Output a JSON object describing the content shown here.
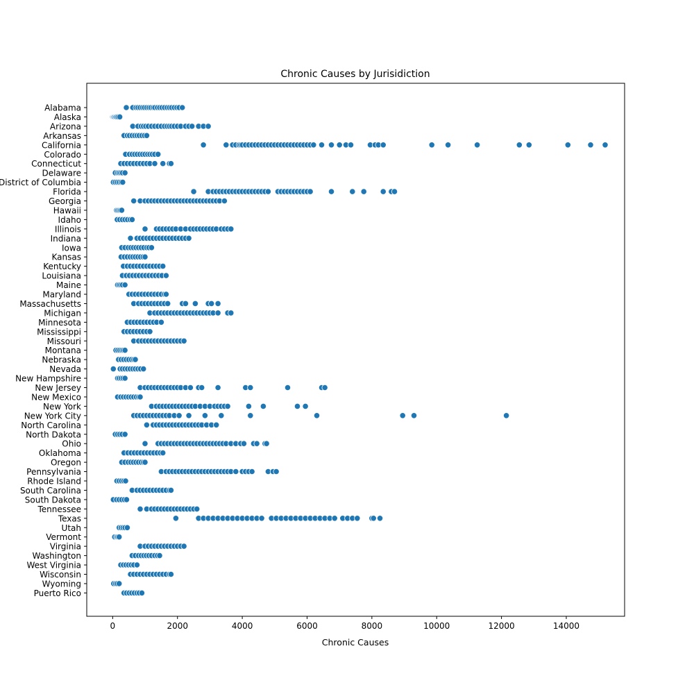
{
  "chart_data": {
    "type": "scatter",
    "title": "Chronic Causes by Jurisidiction",
    "xlabel": "Chronic Causes",
    "ylabel": "",
    "xlim": [
      -800,
      15800
    ],
    "xticks": [
      0,
      2000,
      4000,
      6000,
      8000,
      10000,
      12000,
      14000
    ],
    "grid": false,
    "marker_color": "#1f77b4",
    "marker_edge_color": "#ffffff",
    "categories": [
      {
        "name": "Alabama",
        "min": 420,
        "max": 2150,
        "n": 28,
        "values": [
          420,
          620,
          720,
          780,
          850,
          920,
          980,
          1050,
          1120,
          1180,
          1250,
          1300,
          1380,
          1450,
          1520,
          1600,
          1680,
          1750,
          1820,
          1900,
          1980,
          2050,
          2150
        ]
      },
      {
        "name": "Alaska",
        "min": 0,
        "max": 220,
        "n": 8,
        "values": [
          0,
          20,
          40,
          70,
          100,
          130,
          170,
          220
        ]
      },
      {
        "name": "Arizona",
        "min": 620,
        "max": 2950,
        "n": 30,
        "values": [
          620,
          780,
          880,
          950,
          1020,
          1100,
          1200,
          1300,
          1400,
          1500,
          1600,
          1680,
          1750,
          1820,
          1900,
          2000,
          2100,
          2250,
          2350,
          2450,
          2650,
          2800,
          2950
        ]
      },
      {
        "name": "Arkansas",
        "min": 350,
        "max": 1050,
        "n": 18,
        "values": [
          350,
          450,
          520,
          600,
          680,
          750,
          820,
          900,
          980,
          1050
        ]
      },
      {
        "name": "California",
        "min": 2800,
        "max": 15200,
        "n": 50,
        "values": [
          2800,
          3500,
          3700,
          3800,
          3900,
          3950,
          4000,
          4100,
          4200,
          4300,
          4400,
          4500,
          4600,
          4700,
          4800,
          4900,
          5000,
          5100,
          5200,
          5300,
          5400,
          5500,
          5600,
          5700,
          5800,
          5900,
          6000,
          6100,
          6200,
          6450,
          6750,
          7000,
          7200,
          7350,
          7950,
          8100,
          8200,
          8350,
          9850,
          10350,
          11250,
          12550,
          12850,
          14050,
          14750,
          15200
        ]
      },
      {
        "name": "Colorado",
        "min": 400,
        "max": 1400,
        "n": 20,
        "values": [
          400,
          520,
          600,
          680,
          760,
          840,
          920,
          1000,
          1080,
          1150,
          1220,
          1300,
          1400
        ]
      },
      {
        "name": "Connecticut",
        "min": 250,
        "max": 1800,
        "n": 22,
        "values": [
          250,
          350,
          450,
          550,
          650,
          750,
          850,
          950,
          1050,
          1150,
          1300,
          1550,
          1750,
          1800
        ]
      },
      {
        "name": "Delaware",
        "min": 80,
        "max": 380,
        "n": 8,
        "values": [
          80,
          150,
          200,
          250,
          300,
          380
        ]
      },
      {
        "name": "District of Columbia",
        "min": 20,
        "max": 310,
        "n": 8,
        "values": [
          20,
          80,
          140,
          200,
          260,
          310
        ]
      },
      {
        "name": "Florida",
        "min": 2500,
        "max": 8700,
        "n": 45,
        "values": [
          2500,
          2950,
          3100,
          3200,
          3300,
          3400,
          3500,
          3600,
          3700,
          3800,
          3900,
          4000,
          4100,
          4200,
          4300,
          4400,
          4500,
          4600,
          4700,
          4800,
          5100,
          5200,
          5300,
          5400,
          5500,
          5600,
          5700,
          5800,
          5900,
          6000,
          6100,
          6750,
          7400,
          7750,
          8350,
          8600,
          8700
        ]
      },
      {
        "name": "Georgia",
        "min": 650,
        "max": 3450,
        "n": 35,
        "values": [
          650,
          850,
          1000,
          1100,
          1200,
          1300,
          1400,
          1500,
          1600,
          1700,
          1800,
          1900,
          2000,
          2100,
          2200,
          2300,
          2400,
          2500,
          2600,
          2700,
          2800,
          2900,
          3000,
          3100,
          3200,
          3300,
          3450
        ]
      },
      {
        "name": "Hawaii",
        "min": 120,
        "max": 280,
        "n": 6,
        "values": [
          120,
          160,
          200,
          240,
          280
        ]
      },
      {
        "name": "Idaho",
        "min": 140,
        "max": 600,
        "n": 10,
        "values": [
          140,
          220,
          300,
          380,
          460,
          540,
          600
        ]
      },
      {
        "name": "Illinois",
        "min": 1000,
        "max": 3650,
        "n": 35,
        "values": [
          1000,
          1350,
          1450,
          1550,
          1650,
          1750,
          1850,
          1950,
          2100,
          2250,
          2400,
          2500,
          2600,
          2700,
          2800,
          2900,
          3000,
          3100,
          3200,
          3350,
          3450,
          3550,
          3650
        ]
      },
      {
        "name": "Indiana",
        "min": 550,
        "max": 2350,
        "n": 26,
        "values": [
          550,
          750,
          850,
          950,
          1050,
          1150,
          1250,
          1350,
          1450,
          1550,
          1650,
          1750,
          1850,
          1950,
          2050,
          2150,
          2250,
          2350
        ]
      },
      {
        "name": "Iowa",
        "min": 280,
        "max": 1200,
        "n": 18,
        "values": [
          280,
          380,
          480,
          560,
          640,
          720,
          800,
          880,
          960,
          1050,
          1120,
          1200
        ]
      },
      {
        "name": "Kansas",
        "min": 260,
        "max": 1000,
        "n": 16,
        "values": [
          260,
          360,
          450,
          540,
          620,
          700,
          780,
          860,
          940,
          1000
        ]
      },
      {
        "name": "Kentucky",
        "min": 330,
        "max": 1550,
        "n": 22,
        "values": [
          330,
          450,
          550,
          650,
          750,
          850,
          950,
          1050,
          1150,
          1250,
          1350,
          1450,
          1550
        ]
      },
      {
        "name": "Louisiana",
        "min": 300,
        "max": 1650,
        "n": 22,
        "values": [
          300,
          420,
          520,
          620,
          720,
          820,
          920,
          1020,
          1120,
          1220,
          1320,
          1420,
          1520,
          1650
        ]
      },
      {
        "name": "Maine",
        "min": 150,
        "max": 380,
        "n": 8,
        "values": [
          150,
          200,
          250,
          300,
          380
        ]
      },
      {
        "name": "Maryland",
        "min": 500,
        "max": 1650,
        "n": 20,
        "values": [
          500,
          600,
          700,
          800,
          900,
          1000,
          1100,
          1200,
          1300,
          1400,
          1500,
          1600,
          1650
        ]
      },
      {
        "name": "Massachusetts",
        "min": 650,
        "max": 3250,
        "n": 24,
        "values": [
          650,
          800,
          900,
          1000,
          1100,
          1200,
          1300,
          1400,
          1500,
          1600,
          1700,
          2150,
          2250,
          2550,
          2950,
          3050,
          3250
        ]
      },
      {
        "name": "Michigan",
        "min": 1150,
        "max": 3650,
        "n": 34,
        "values": [
          1150,
          1300,
          1400,
          1500,
          1600,
          1700,
          1800,
          1900,
          2000,
          2100,
          2200,
          2300,
          2400,
          2500,
          2600,
          2700,
          2800,
          2900,
          3000,
          3100,
          3250,
          3550,
          3650
        ]
      },
      {
        "name": "Minnesota",
        "min": 450,
        "max": 1500,
        "n": 18,
        "values": [
          450,
          560,
          660,
          760,
          860,
          960,
          1060,
          1160,
          1260,
          1360,
          1500
        ]
      },
      {
        "name": "Mississippi",
        "min": 350,
        "max": 1150,
        "n": 16,
        "values": [
          350,
          450,
          550,
          650,
          750,
          850,
          950,
          1050,
          1150
        ]
      },
      {
        "name": "Missouri",
        "min": 650,
        "max": 2200,
        "n": 24,
        "values": [
          650,
          800,
          900,
          1000,
          1100,
          1200,
          1300,
          1400,
          1500,
          1600,
          1700,
          1800,
          1900,
          2000,
          2100,
          2200
        ]
      },
      {
        "name": "Montana",
        "min": 100,
        "max": 380,
        "n": 8,
        "values": [
          100,
          160,
          220,
          280,
          330,
          380
        ]
      },
      {
        "name": "Nebraska",
        "min": 180,
        "max": 700,
        "n": 12,
        "values": [
          180,
          260,
          340,
          420,
          500,
          580,
          650,
          700
        ]
      },
      {
        "name": "Nevada",
        "min": 20,
        "max": 950,
        "n": 16,
        "values": [
          20,
          230,
          300,
          380,
          460,
          540,
          620,
          700,
          780,
          860,
          950
        ]
      },
      {
        "name": "New Hampshire",
        "min": 150,
        "max": 380,
        "n": 8,
        "values": [
          150,
          200,
          260,
          320,
          380
        ]
      },
      {
        "name": "New Jersey",
        "min": 850,
        "max": 6550,
        "n": 34,
        "values": [
          850,
          1000,
          1100,
          1200,
          1300,
          1400,
          1500,
          1600,
          1700,
          1800,
          1900,
          2000,
          2100,
          2250,
          2400,
          2650,
          2750,
          3250,
          4100,
          4250,
          5400,
          6450,
          6550
        ]
      },
      {
        "name": "New Mexico",
        "min": 150,
        "max": 850,
        "n": 14,
        "values": [
          150,
          250,
          330,
          410,
          490,
          570,
          650,
          730,
          800,
          850
        ]
      },
      {
        "name": "New York",
        "min": 1200,
        "max": 5950,
        "n": 34,
        "values": [
          1200,
          1350,
          1450,
          1550,
          1650,
          1750,
          1850,
          1950,
          2050,
          2150,
          2250,
          2350,
          2450,
          2550,
          2700,
          2850,
          3000,
          3150,
          3250,
          3350,
          3450,
          3550,
          4200,
          4650,
          5700,
          5950
        ]
      },
      {
        "name": "New York City",
        "min": 650,
        "max": 12150,
        "n": 30,
        "values": [
          650,
          750,
          850,
          950,
          1050,
          1150,
          1250,
          1350,
          1450,
          1550,
          1650,
          1750,
          1900,
          2050,
          2350,
          2850,
          3350,
          4250,
          6300,
          8950,
          9300,
          12150
        ]
      },
      {
        "name": "North Carolina",
        "min": 1050,
        "max": 3200,
        "n": 30,
        "values": [
          1050,
          1250,
          1350,
          1450,
          1550,
          1650,
          1750,
          1850,
          1950,
          2050,
          2150,
          2250,
          2350,
          2450,
          2550,
          2650,
          2750,
          2900,
          3050,
          3200
        ]
      },
      {
        "name": "North Dakota",
        "min": 80,
        "max": 380,
        "n": 8,
        "values": [
          80,
          150,
          220,
          290,
          380
        ]
      },
      {
        "name": "Ohio",
        "min": 1000,
        "max": 4750,
        "n": 40,
        "values": [
          1000,
          1400,
          1500,
          1600,
          1700,
          1800,
          1900,
          2000,
          2100,
          2200,
          2300,
          2400,
          2500,
          2600,
          2700,
          2800,
          2900,
          3000,
          3100,
          3200,
          3300,
          3400,
          3500,
          3650,
          3800,
          3950,
          4050,
          4350,
          4450,
          4700,
          4750
        ]
      },
      {
        "name": "Oklahoma",
        "min": 350,
        "max": 1550,
        "n": 20,
        "values": [
          350,
          470,
          570,
          670,
          770,
          870,
          970,
          1070,
          1170,
          1270,
          1370,
          1470,
          1550
        ]
      },
      {
        "name": "Oregon",
        "min": 280,
        "max": 1000,
        "n": 16,
        "values": [
          280,
          380,
          480,
          560,
          640,
          720,
          800,
          880,
          950,
          1000
        ]
      },
      {
        "name": "Pennsylvania",
        "min": 1500,
        "max": 5050,
        "n": 40,
        "values": [
          1500,
          1650,
          1750,
          1850,
          1950,
          2050,
          2150,
          2250,
          2350,
          2450,
          2550,
          2650,
          2750,
          2850,
          2950,
          3050,
          3150,
          3250,
          3350,
          3450,
          3550,
          3650,
          3800,
          4000,
          4100,
          4200,
          4300,
          4800,
          4950,
          5050
        ]
      },
      {
        "name": "Rhode Island",
        "min": 130,
        "max": 400,
        "n": 8,
        "values": [
          130,
          200,
          270,
          340,
          400
        ]
      },
      {
        "name": "South Carolina",
        "min": 600,
        "max": 1800,
        "n": 20,
        "values": [
          600,
          750,
          850,
          950,
          1050,
          1150,
          1250,
          1350,
          1450,
          1550,
          1650,
          1750,
          1800
        ]
      },
      {
        "name": "South Dakota",
        "min": 20,
        "max": 430,
        "n": 8,
        "values": [
          20,
          120,
          200,
          280,
          360,
          430
        ]
      },
      {
        "name": "Tennessee",
        "min": 850,
        "max": 2600,
        "n": 26,
        "values": [
          850,
          1050,
          1200,
          1300,
          1400,
          1500,
          1600,
          1700,
          1800,
          1900,
          2000,
          2100,
          2200,
          2300,
          2400,
          2500,
          2600
        ]
      },
      {
        "name": "Texas",
        "min": 1950,
        "max": 8250,
        "n": 55,
        "values": [
          1950,
          2650,
          2800,
          2950,
          3100,
          3250,
          3400,
          3550,
          3700,
          3850,
          4000,
          4150,
          4300,
          4450,
          4600,
          4900,
          5050,
          5200,
          5350,
          5500,
          5650,
          5800,
          5950,
          6100,
          6250,
          6400,
          6550,
          6700,
          6850,
          7100,
          7250,
          7400,
          7550,
          8000,
          8050,
          8250
        ]
      },
      {
        "name": "Utah",
        "min": 200,
        "max": 450,
        "n": 8,
        "values": [
          200,
          260,
          320,
          380,
          450
        ]
      },
      {
        "name": "Vermont",
        "min": 60,
        "max": 200,
        "n": 5,
        "values": [
          60,
          120,
          160,
          200
        ]
      },
      {
        "name": "Virginia",
        "min": 850,
        "max": 2200,
        "n": 24,
        "values": [
          850,
          1000,
          1100,
          1200,
          1300,
          1400,
          1500,
          1600,
          1700,
          1800,
          1900,
          2000,
          2100,
          2200
        ]
      },
      {
        "name": "Washington",
        "min": 600,
        "max": 1450,
        "n": 18,
        "values": [
          600,
          700,
          800,
          880,
          960,
          1040,
          1120,
          1200,
          1300,
          1380,
          1450
        ]
      },
      {
        "name": "West Virginia",
        "min": 250,
        "max": 750,
        "n": 12,
        "values": [
          250,
          330,
          410,
          490,
          570,
          650,
          750
        ]
      },
      {
        "name": "Wisconsin",
        "min": 550,
        "max": 1800,
        "n": 22,
        "values": [
          550,
          650,
          750,
          850,
          950,
          1050,
          1150,
          1250,
          1350,
          1450,
          1550,
          1650,
          1750,
          1800
        ]
      },
      {
        "name": "Wyoming",
        "min": 30,
        "max": 200,
        "n": 6,
        "values": [
          30,
          90,
          140,
          200
        ]
      },
      {
        "name": "Puerto Rico",
        "min": 350,
        "max": 900,
        "n": 12,
        "values": [
          350,
          430,
          510,
          590,
          670,
          750,
          820,
          900
        ]
      }
    ]
  }
}
